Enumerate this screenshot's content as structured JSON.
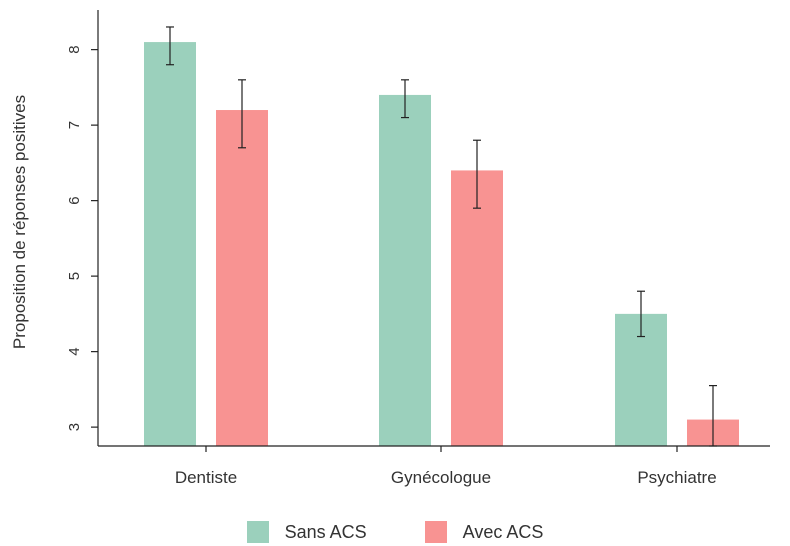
{
  "chart_data": {
    "type": "bar",
    "title": "",
    "xlabel": "",
    "ylabel": "Proposition de réponses positives",
    "categories": [
      "Dentiste",
      "Gynécologue",
      "Psychiatre"
    ],
    "ylim": [
      2.75,
      9.0
    ],
    "yticks": [
      "3",
      "4",
      "5",
      "6",
      "7",
      "8"
    ],
    "series": [
      {
        "name": "Sans ACS",
        "color": "#9bd0bc",
        "values": [
          8.1,
          7.4,
          4.5
        ],
        "err_low": [
          7.8,
          7.1,
          4.2
        ],
        "err_high": [
          8.3,
          7.6,
          4.8
        ]
      },
      {
        "name": "Avec ACS",
        "color": "#f89392",
        "values": [
          7.2,
          6.4,
          3.1
        ],
        "err_low": [
          6.7,
          5.9,
          2.75
        ],
        "err_high": [
          7.6,
          6.8,
          3.55
        ]
      }
    ],
    "legend_position": "bottom",
    "grid": false
  }
}
